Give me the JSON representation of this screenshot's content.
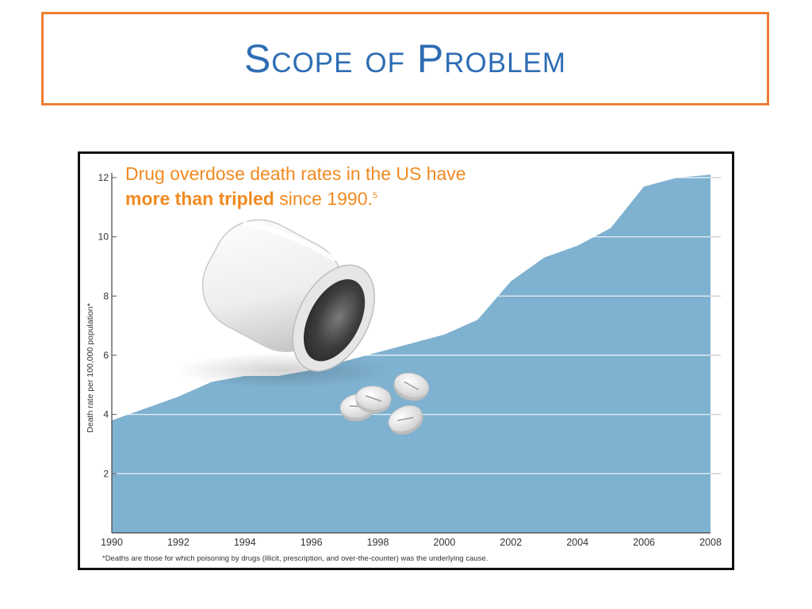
{
  "slide": {
    "title": "Scope of Problem"
  },
  "chart_data": {
    "type": "area",
    "title_part1": "Drug overdose death rates in the US have",
    "title_bold": "more than tripled",
    "title_part2": "since 1990.",
    "title_superscript": "5",
    "ylabel": "Death rate per 100,000 population*",
    "xlabel": "",
    "footnote": "*Deaths are those for which poisoning by drugs (illicit, prescription, and over-the-counter) was the underlying cause.",
    "x": [
      1990,
      1991,
      1992,
      1993,
      1994,
      1995,
      1996,
      1997,
      1998,
      1999,
      2000,
      2001,
      2002,
      2003,
      2004,
      2005,
      2006,
      2007,
      2008
    ],
    "values": [
      3.8,
      4.2,
      4.6,
      5.1,
      5.3,
      5.3,
      5.5,
      5.8,
      6.1,
      6.4,
      6.7,
      7.2,
      8.5,
      9.3,
      9.7,
      10.3,
      11.7,
      12.0,
      12.1
    ],
    "xlim": [
      1990,
      2008
    ],
    "ylim": [
      0,
      12
    ],
    "x_ticks": [
      "1990",
      "1992",
      "1994",
      "1996",
      "1998",
      "2000",
      "2002",
      "2004",
      "2006",
      "2008"
    ],
    "y_ticks": [
      "2",
      "4",
      "6",
      "8",
      "10",
      "12"
    ],
    "grid": true,
    "colors": {
      "area": "#7FB1D0",
      "grid": "#C8C8C8",
      "headline": "#F18A21",
      "title": "#2E6DB4",
      "title_border": "#ED7D31"
    },
    "illustration_icons": [
      "pill-bottle-icon",
      "pill-icon"
    ]
  }
}
